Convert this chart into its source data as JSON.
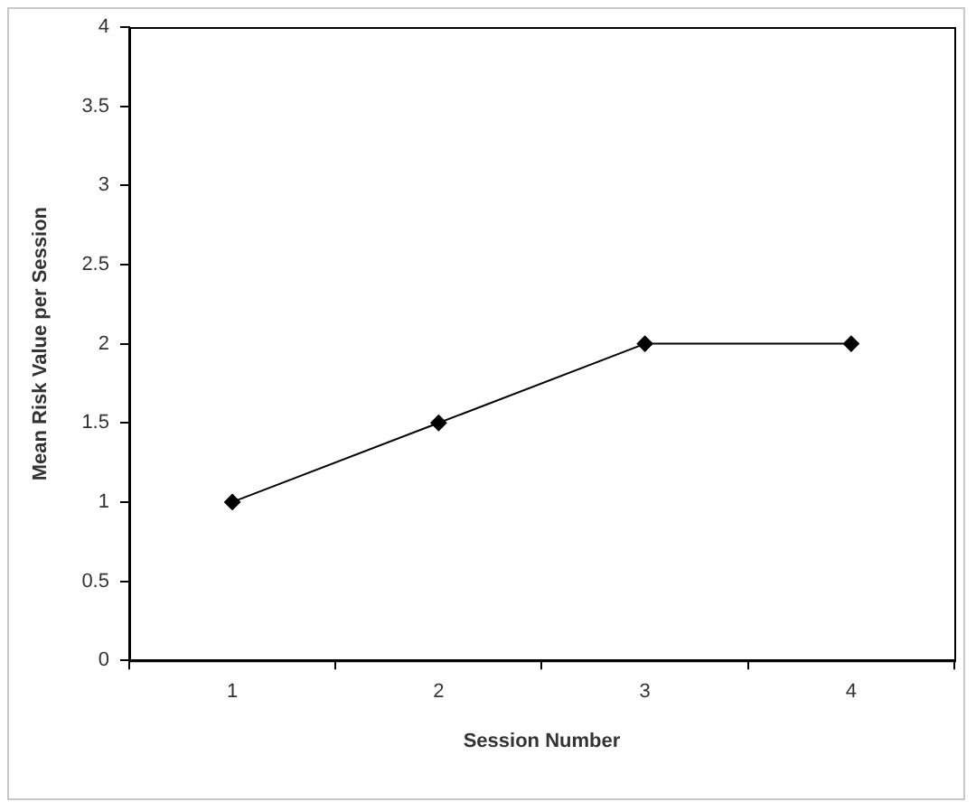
{
  "chart_data": {
    "type": "line",
    "xlabel": "Session Number",
    "ylabel": "Mean Risk Value per Session",
    "categories": [
      "1",
      "2",
      "3",
      "4"
    ],
    "series": [
      {
        "color": "#000000",
        "values": [
          1,
          1.5,
          2,
          2
        ]
      }
    ],
    "ylim": [
      0,
      4
    ],
    "yticks": [
      0,
      {
        "value": 0.5,
        "label": "0.5"
      },
      1,
      {
        "value": 1.5,
        "label": "1.5"
      },
      2,
      {
        "value": 2.5,
        "label": "2.5"
      },
      3,
      {
        "value": 3.5,
        "label": "3.5"
      },
      4
    ],
    "grid": false,
    "legend": false,
    "marker": "diamond",
    "line_style": "solid"
  }
}
